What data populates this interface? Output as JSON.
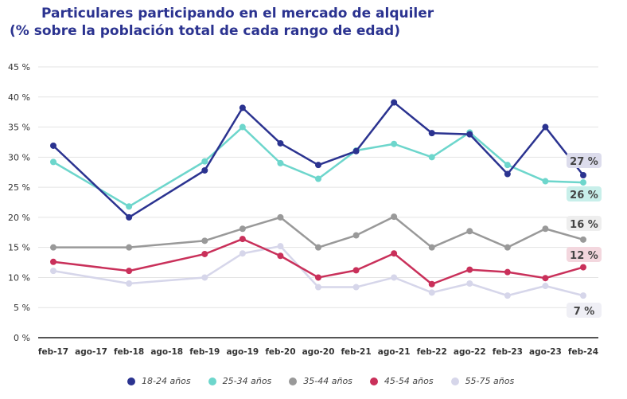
{
  "chart_data": {
    "type": "line",
    "title": "Particulares participando en el mercado de alquiler",
    "subtitle": "(% sobre la población total de cada rango de edad)",
    "categories": [
      "feb-17",
      "ago-17",
      "feb-18",
      "ago-18",
      "feb-19",
      "ago-19",
      "feb-20",
      "ago-20",
      "feb-21",
      "ago-21",
      "feb-22",
      "ago-22",
      "feb-23",
      "ago-23",
      "feb-24"
    ],
    "yticks": [
      "0 %",
      "5 %",
      "10 %",
      "15 %",
      "20 %",
      "25 %",
      "30 %",
      "35 %",
      "40 %",
      "45 %"
    ],
    "ylim": [
      0,
      45
    ],
    "grid": true,
    "legend_position": "bottom",
    "series": [
      {
        "name": "18-24 años",
        "color": "#2b3390",
        "end_label": "27 %",
        "label_bg": "#dcdcec",
        "values": [
          31.9,
          null,
          20,
          null,
          27.8,
          38.2,
          32.3,
          28.7,
          31,
          39.1,
          34,
          33.8,
          27.2,
          35,
          27
        ]
      },
      {
        "name": "25-34 años",
        "color": "#6dd6cc",
        "end_label": "26 %",
        "label_bg": "#c8efea",
        "values": [
          29.2,
          null,
          21.8,
          null,
          29.3,
          35,
          29,
          26.4,
          31.1,
          32.2,
          30,
          34.1,
          28.7,
          26,
          25.8
        ]
      },
      {
        "name": "35-44 años",
        "color": "#999999",
        "end_label": "16 %",
        "label_bg": "#eeeeee",
        "values": [
          15,
          null,
          15,
          null,
          16.1,
          18.1,
          20,
          15,
          17,
          20.1,
          15,
          17.7,
          15,
          18.1,
          16.3
        ]
      },
      {
        "name": "45-54 años",
        "color": "#c9305a",
        "end_label": "12 %",
        "label_bg": "#f3d7de",
        "values": [
          12.6,
          null,
          11.1,
          null,
          13.9,
          16.4,
          13.6,
          10,
          11.2,
          14,
          8.9,
          11.3,
          10.9,
          9.9,
          11.7
        ]
      },
      {
        "name": "55-75 años",
        "color": "#d6d6ea",
        "end_label": "7 %",
        "label_bg": "#efeff5",
        "values": [
          11.1,
          null,
          9,
          null,
          10,
          14,
          15.2,
          8.4,
          8.4,
          10,
          7.5,
          9,
          7,
          8.6,
          7
        ]
      }
    ]
  }
}
